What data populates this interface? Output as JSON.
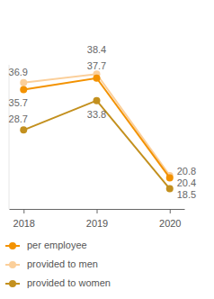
{
  "chart_data": {
    "type": "line",
    "categories": [
      "2018",
      "2019",
      "2020"
    ],
    "series": [
      {
        "name": "per employee",
        "color": "#f39200",
        "values": [
          35.7,
          37.7,
          20.4
        ],
        "marker": "circle"
      },
      {
        "name": "provided to men",
        "color": "#fbcf9a",
        "values": [
          36.9,
          38.4,
          20.8
        ],
        "marker": "circle"
      },
      {
        "name": "provided to women",
        "color": "#c3901e",
        "values": [
          28.7,
          33.8,
          18.5
        ],
        "marker": "circle"
      }
    ],
    "ylim": [
      15,
      40
    ],
    "tick_labels": "x",
    "data_labels": true,
    "legend": "bottom",
    "grid": false
  }
}
